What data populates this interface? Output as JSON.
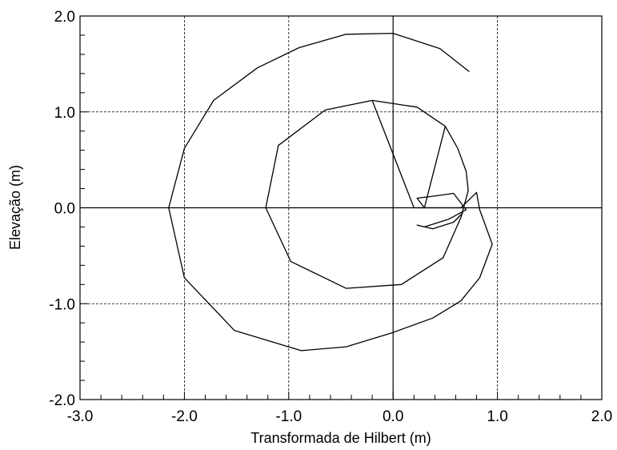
{
  "chart_data": {
    "type": "line",
    "title": "",
    "xlabel": "Transformada de Hilbert (m)",
    "ylabel": "Elevação (m)",
    "xlim": [
      -3.0,
      2.0
    ],
    "ylim": [
      -2.0,
      2.0
    ],
    "x_ticks": [
      -3.0,
      -2.0,
      -1.0,
      0.0,
      1.0,
      2.0
    ],
    "y_ticks": [
      -2.0,
      -1.0,
      0.0,
      1.0,
      2.0
    ],
    "x_tick_labels": [
      "-3.0",
      "-2.0",
      "-1.0",
      "0.0",
      "1.0",
      "2.0"
    ],
    "y_tick_labels": [
      "-2.0",
      "-1.0",
      "0.0",
      "1.0",
      "2.0"
    ],
    "grid": true,
    "series": [
      {
        "color": "#000000",
        "x": [
          0.73,
          0.45,
          0.0,
          -0.45,
          -0.9,
          -1.3,
          -1.72,
          -2.0,
          -2.15,
          -2.0,
          -1.52,
          -0.88,
          -0.45,
          0.0,
          0.38,
          0.65,
          0.83,
          0.95,
          0.83,
          0.8,
          0.65,
          0.58,
          0.5,
          0.2,
          -0.2,
          -0.65,
          -1.1,
          -1.22,
          -0.98,
          -0.45,
          0.08,
          0.48,
          0.65,
          0.72,
          0.7,
          0.62,
          0.5,
          0.23,
          -0.2,
          -0.65,
          -1.1,
          -1.22,
          -0.98,
          -0.45,
          0.08,
          0.48,
          0.65,
          0.72,
          0.7,
          0.62,
          0.5,
          0.3,
          0.23,
          0.38,
          0.58,
          0.7,
          0.53,
          0.3,
          0.23,
          0.38,
          0.58,
          0.67
        ],
        "y": [
          1.42,
          1.66,
          1.82,
          1.81,
          1.67,
          1.46,
          1.12,
          0.62,
          0.0,
          -0.73,
          -1.28,
          -1.49,
          -1.45,
          -1.3,
          -1.15,
          -0.97,
          -0.73,
          -0.38,
          -0.02,
          0.16,
          0.0,
          0.0,
          0.0,
          0.0,
          1.12,
          1.02,
          0.65,
          0.0,
          -0.56,
          -0.84,
          -0.8,
          -0.52,
          -0.1,
          0.18,
          0.38,
          0.62,
          0.85,
          1.05,
          1.12,
          1.02,
          0.65,
          0.0,
          -0.56,
          -0.84,
          -0.8,
          -0.52,
          -0.1,
          0.18,
          0.38,
          0.62,
          0.85,
          0.0,
          0.1,
          0.12,
          0.15,
          -0.02,
          -0.12,
          -0.2,
          -0.18,
          -0.22,
          -0.15,
          -0.05
        ]
      }
    ],
    "axis_color": "#000000",
    "grid_color": "#000000"
  }
}
